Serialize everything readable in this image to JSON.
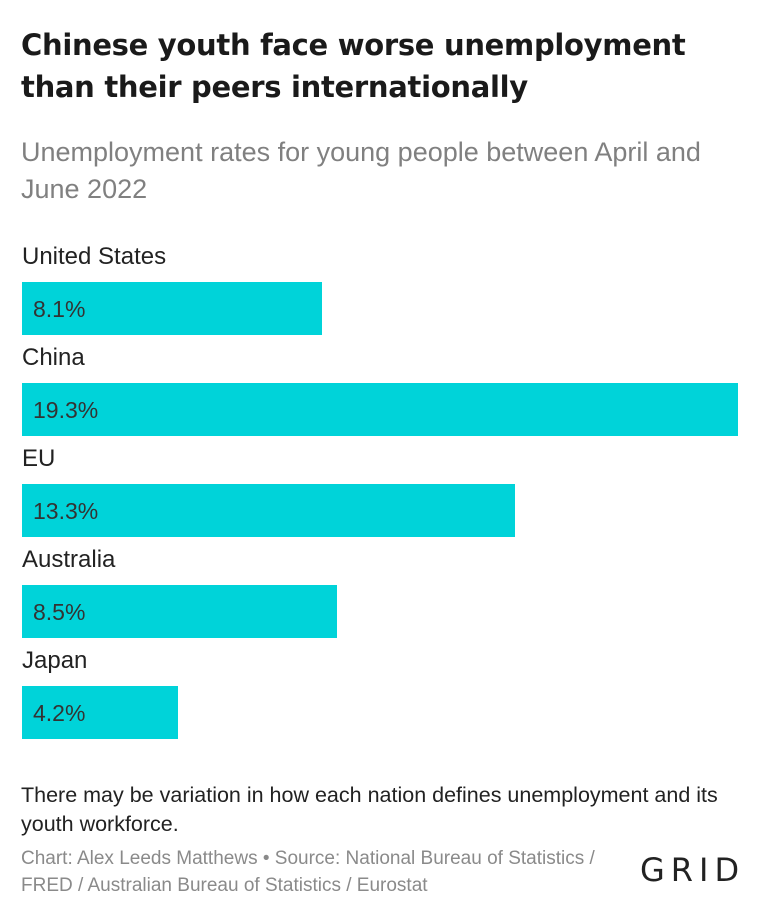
{
  "title": "Chinese youth face worse unemployment than their peers internationally",
  "subtitle": "Unemployment rates for young people between April and June 2022",
  "note": "There may be variation in how each nation defines unemployment and its youth workforce.",
  "footer": "Chart: Alex Leeds Matthews • Source: National Bureau of Statistics / FRED / Australian Bureau of Statistics / Eurostat",
  "logo": "GRID",
  "colors": {
    "bar": "#00d3d9"
  },
  "chart_data": {
    "type": "bar",
    "orientation": "horizontal",
    "categories": [
      "United States",
      "China",
      "EU",
      "Australia",
      "Japan"
    ],
    "values": [
      8.1,
      19.3,
      13.3,
      8.5,
      4.2
    ],
    "value_labels": [
      "8.1%",
      "19.3%",
      "13.3%",
      "8.5%",
      "4.2%"
    ],
    "xlim": [
      0,
      19.3
    ],
    "grid": false,
    "legend": "none"
  }
}
